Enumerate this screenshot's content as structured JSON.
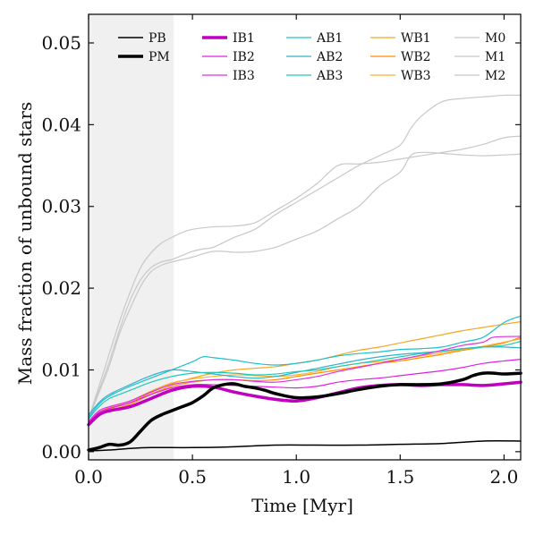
{
  "chart_data": {
    "type": "line",
    "xlabel": "Time [Myr]",
    "ylabel": "Mass fraction of unbound stars",
    "xlim": [
      0.0,
      2.08
    ],
    "ylim": [
      -0.001,
      0.0535
    ],
    "xticks": [
      0.0,
      0.5,
      1.0,
      1.5,
      2.0
    ],
    "xtick_labels": [
      "0.0",
      "0.5",
      "1.0",
      "1.5",
      "2.0"
    ],
    "yticks": [
      0.0,
      0.01,
      0.02,
      0.03,
      0.04,
      0.05
    ],
    "ytick_labels": [
      "0.00",
      "0.01",
      "0.02",
      "0.03",
      "0.04",
      "0.05"
    ],
    "shaded_region": {
      "x": [
        0.0,
        0.41
      ],
      "color": "#f0f0f0"
    },
    "grid": false,
    "legend_position": "top",
    "series": [
      {
        "name": "PB",
        "color": "#000000",
        "width": 1.5,
        "x": [
          0,
          0.1,
          0.2,
          0.3,
          0.5,
          0.7,
          0.9,
          1.1,
          1.3,
          1.5,
          1.7,
          1.9,
          2.08
        ],
        "y": [
          0.0001,
          0.0002,
          0.0004,
          0.0005,
          0.0005,
          0.0006,
          0.0008,
          0.0008,
          0.0008,
          0.0009,
          0.001,
          0.0013,
          0.0013
        ]
      },
      {
        "name": "PM",
        "color": "#000000",
        "width": 3.5,
        "x": [
          0,
          0.05,
          0.1,
          0.15,
          0.2,
          0.25,
          0.3,
          0.35,
          0.4,
          0.45,
          0.5,
          0.55,
          0.6,
          0.65,
          0.7,
          0.75,
          0.8,
          0.85,
          0.9,
          1.0,
          1.1,
          1.2,
          1.3,
          1.4,
          1.5,
          1.6,
          1.7,
          1.8,
          1.85,
          1.9,
          1.95,
          2.0,
          2.08
        ],
        "y": [
          0.0002,
          0.0005,
          0.0009,
          0.0008,
          0.0012,
          0.0025,
          0.0038,
          0.0045,
          0.005,
          0.0055,
          0.006,
          0.0068,
          0.0078,
          0.0082,
          0.0083,
          0.008,
          0.0078,
          0.0075,
          0.0071,
          0.0066,
          0.0067,
          0.0071,
          0.0076,
          0.008,
          0.0082,
          0.0082,
          0.0083,
          0.0088,
          0.0093,
          0.0096,
          0.0096,
          0.0095,
          0.0096
        ]
      },
      {
        "name": "IB1",
        "color": "#c000c0",
        "width": 3.5,
        "x": [
          0,
          0.05,
          0.1,
          0.2,
          0.3,
          0.4,
          0.5,
          0.6,
          0.7,
          0.8,
          0.9,
          1.0,
          1.1,
          1.2,
          1.3,
          1.4,
          1.5,
          1.6,
          1.7,
          1.8,
          1.9,
          2.0,
          2.08
        ],
        "y": [
          0.0033,
          0.0045,
          0.005,
          0.0055,
          0.0065,
          0.0075,
          0.008,
          0.0079,
          0.0073,
          0.0068,
          0.0064,
          0.0062,
          0.0066,
          0.0072,
          0.0078,
          0.0081,
          0.0082,
          0.0081,
          0.0082,
          0.0082,
          0.0081,
          0.0083,
          0.0085
        ]
      },
      {
        "name": "IB2",
        "color": "#e020e0",
        "width": 1.2,
        "x": [
          0,
          0.05,
          0.1,
          0.2,
          0.3,
          0.4,
          0.5,
          0.6,
          0.7,
          0.8,
          0.9,
          1.0,
          1.1,
          1.2,
          1.3,
          1.4,
          1.5,
          1.6,
          1.7,
          1.8,
          1.9,
          2.0,
          2.08
        ],
        "y": [
          0.0035,
          0.0048,
          0.0053,
          0.006,
          0.007,
          0.0078,
          0.0082,
          0.0082,
          0.0081,
          0.008,
          0.0079,
          0.0078,
          0.008,
          0.0085,
          0.0088,
          0.009,
          0.0093,
          0.0096,
          0.0099,
          0.0103,
          0.0108,
          0.0111,
          0.0113
        ]
      },
      {
        "name": "IB3",
        "color": "#e030e0",
        "width": 1.2,
        "x": [
          0,
          0.05,
          0.1,
          0.2,
          0.3,
          0.4,
          0.5,
          0.6,
          0.7,
          0.8,
          0.9,
          1.0,
          1.1,
          1.2,
          1.3,
          1.4,
          1.5,
          1.6,
          1.7,
          1.8,
          1.9,
          1.95,
          2.08
        ],
        "y": [
          0.0037,
          0.005,
          0.0055,
          0.0062,
          0.0073,
          0.0082,
          0.0086,
          0.0088,
          0.0088,
          0.0086,
          0.0085,
          0.0088,
          0.0092,
          0.0098,
          0.0103,
          0.0108,
          0.0113,
          0.0118,
          0.0124,
          0.013,
          0.0134,
          0.014,
          0.0141
        ]
      },
      {
        "name": "AB1",
        "color": "#20c0c8",
        "width": 1.2,
        "x": [
          0,
          0.05,
          0.1,
          0.2,
          0.3,
          0.4,
          0.5,
          0.55,
          0.6,
          0.7,
          0.8,
          0.9,
          1.0,
          1.1,
          1.2,
          1.3,
          1.4,
          1.5,
          1.6,
          1.7,
          1.8,
          1.9,
          2.0,
          2.08
        ],
        "y": [
          0.0042,
          0.0058,
          0.0068,
          0.008,
          0.009,
          0.01,
          0.011,
          0.0116,
          0.0115,
          0.0112,
          0.0108,
          0.0106,
          0.0108,
          0.0112,
          0.0117,
          0.012,
          0.0122,
          0.0125,
          0.0126,
          0.0128,
          0.0134,
          0.014,
          0.0158,
          0.0166
        ]
      },
      {
        "name": "AB2",
        "color": "#30b0d0",
        "width": 1.2,
        "x": [
          0,
          0.05,
          0.1,
          0.2,
          0.3,
          0.4,
          0.5,
          0.6,
          0.7,
          0.8,
          0.9,
          1.0,
          1.1,
          1.2,
          1.3,
          1.4,
          1.5,
          1.6,
          1.7,
          1.8,
          1.9,
          2.0,
          2.08
        ],
        "y": [
          0.0045,
          0.006,
          0.007,
          0.0082,
          0.0093,
          0.01,
          0.0098,
          0.0095,
          0.0092,
          0.009,
          0.0092,
          0.0097,
          0.0102,
          0.0107,
          0.0112,
          0.0116,
          0.0119,
          0.0121,
          0.0123,
          0.0126,
          0.0128,
          0.0128,
          0.0127
        ]
      },
      {
        "name": "AB3",
        "color": "#20c8b8",
        "width": 1.2,
        "x": [
          0,
          0.05,
          0.1,
          0.2,
          0.3,
          0.4,
          0.5,
          0.6,
          0.7,
          0.8,
          0.9,
          1.0,
          1.1,
          1.2,
          1.3,
          1.4,
          1.5,
          1.6,
          1.7,
          1.8,
          1.9,
          2.0,
          2.08
        ],
        "y": [
          0.004,
          0.0055,
          0.0065,
          0.0075,
          0.0085,
          0.0092,
          0.0096,
          0.0097,
          0.0096,
          0.0094,
          0.0095,
          0.0098,
          0.01,
          0.0104,
          0.0108,
          0.0112,
          0.0116,
          0.012,
          0.0123,
          0.0126,
          0.0128,
          0.013,
          0.0135
        ]
      },
      {
        "name": "WB1",
        "color": "#f5a623",
        "width": 1.2,
        "x": [
          0,
          0.05,
          0.1,
          0.2,
          0.3,
          0.4,
          0.5,
          0.6,
          0.7,
          0.8,
          0.9,
          1.0,
          1.1,
          1.2,
          1.3,
          1.4,
          1.5,
          1.6,
          1.7,
          1.8,
          1.9,
          2.0,
          2.08
        ],
        "y": [
          0.0034,
          0.0046,
          0.0052,
          0.006,
          0.0072,
          0.0083,
          0.009,
          0.0096,
          0.01,
          0.0102,
          0.0104,
          0.0108,
          0.0112,
          0.0118,
          0.0124,
          0.0128,
          0.0133,
          0.0138,
          0.0143,
          0.0148,
          0.0152,
          0.0156,
          0.0159
        ]
      },
      {
        "name": "WB2",
        "color": "#ff8c00",
        "width": 1.2,
        "x": [
          0,
          0.05,
          0.1,
          0.2,
          0.3,
          0.4,
          0.5,
          0.6,
          0.7,
          0.8,
          0.9,
          1.0,
          1.1,
          1.2,
          1.3,
          1.4,
          1.5,
          1.6,
          1.7,
          1.8,
          1.9,
          2.0,
          2.08
        ],
        "y": [
          0.0033,
          0.0045,
          0.005,
          0.0058,
          0.007,
          0.008,
          0.0085,
          0.0088,
          0.0088,
          0.0087,
          0.0088,
          0.0092,
          0.0096,
          0.01,
          0.0104,
          0.0108,
          0.0111,
          0.0115,
          0.0119,
          0.0124,
          0.0128,
          0.0133,
          0.014
        ]
      },
      {
        "name": "WB3",
        "color": "#f7b030",
        "width": 1.2,
        "x": [
          0,
          0.05,
          0.1,
          0.2,
          0.3,
          0.4,
          0.5,
          0.6,
          0.7,
          0.8,
          0.9,
          1.0,
          1.1,
          1.2,
          1.3,
          1.4,
          1.5,
          1.6,
          1.7,
          1.8,
          1.9,
          2.0,
          2.08
        ],
        "y": [
          0.0036,
          0.0048,
          0.0054,
          0.0062,
          0.0074,
          0.0084,
          0.0089,
          0.0092,
          0.0094,
          0.0093,
          0.0092,
          0.0094,
          0.0098,
          0.0104,
          0.0108,
          0.011,
          0.0113,
          0.0117,
          0.0121,
          0.0125,
          0.0129,
          0.0134,
          0.0138
        ]
      },
      {
        "name": "M0",
        "color": "#c8c8c8",
        "width": 1.2,
        "x": [
          0,
          0.05,
          0.1,
          0.15,
          0.2,
          0.25,
          0.3,
          0.35,
          0.4,
          0.45,
          0.5,
          0.55,
          0.6,
          0.7,
          0.8,
          0.9,
          1.0,
          1.1,
          1.2,
          1.3,
          1.4,
          1.5,
          1.55,
          1.6,
          1.7,
          1.8,
          1.9,
          2.0,
          2.08
        ],
        "y": [
          0.004,
          0.0075,
          0.011,
          0.015,
          0.0185,
          0.021,
          0.0225,
          0.0232,
          0.0235,
          0.024,
          0.0245,
          0.0248,
          0.025,
          0.0262,
          0.0272,
          0.029,
          0.0305,
          0.032,
          0.0335,
          0.035,
          0.0362,
          0.0375,
          0.0395,
          0.041,
          0.0428,
          0.0432,
          0.0434,
          0.0436,
          0.0436
        ]
      },
      {
        "name": "M1",
        "color": "#c8c8c8",
        "width": 1.2,
        "x": [
          0,
          0.05,
          0.1,
          0.15,
          0.2,
          0.25,
          0.3,
          0.35,
          0.4,
          0.45,
          0.5,
          0.6,
          0.7,
          0.8,
          0.9,
          1.0,
          1.1,
          1.2,
          1.3,
          1.4,
          1.5,
          1.6,
          1.7,
          1.8,
          1.9,
          2.0,
          2.08
        ],
        "y": [
          0.004,
          0.008,
          0.012,
          0.016,
          0.0195,
          0.0225,
          0.0243,
          0.0255,
          0.0262,
          0.0268,
          0.0272,
          0.0275,
          0.0276,
          0.028,
          0.0295,
          0.031,
          0.0328,
          0.035,
          0.0352,
          0.0354,
          0.0358,
          0.0362,
          0.0366,
          0.037,
          0.0376,
          0.0384,
          0.0386
        ]
      },
      {
        "name": "M2",
        "color": "#c8c8c8",
        "width": 1.2,
        "x": [
          0,
          0.05,
          0.1,
          0.15,
          0.2,
          0.25,
          0.3,
          0.35,
          0.4,
          0.45,
          0.5,
          0.6,
          0.7,
          0.75,
          0.8,
          0.9,
          1.0,
          1.1,
          1.2,
          1.3,
          1.4,
          1.5,
          1.55,
          1.6,
          1.7,
          1.8,
          1.9,
          2.0,
          2.08
        ],
        "y": [
          0.004,
          0.0072,
          0.0105,
          0.0145,
          0.0175,
          0.0202,
          0.022,
          0.0228,
          0.0232,
          0.0235,
          0.0238,
          0.0245,
          0.0244,
          0.0244,
          0.0245,
          0.025,
          0.026,
          0.027,
          0.0285,
          0.03,
          0.0325,
          0.0342,
          0.0362,
          0.0366,
          0.0365,
          0.0363,
          0.0362,
          0.0363,
          0.0364
        ]
      }
    ]
  }
}
